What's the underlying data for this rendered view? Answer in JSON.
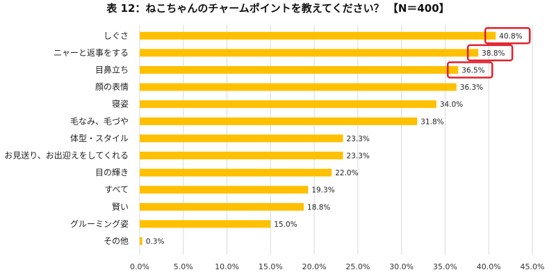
{
  "chart_data": {
    "type": "bar",
    "orientation": "horizontal",
    "title": "表 12：ねこちゃんのチャームポイントを教えてください？ 【N＝400】",
    "categories": [
      "しぐさ",
      "ニャーと返事をする",
      "目鼻立ち",
      "顔の表情",
      "寝姿",
      "毛なみ、毛づや",
      "体型・スタイル",
      "お見送り、お出迎えをしてくれる",
      "目の輝き",
      "すべて",
      "賢い",
      "グルーミング姿",
      "その他"
    ],
    "values": [
      40.8,
      38.8,
      36.5,
      36.3,
      34.0,
      31.8,
      23.3,
      23.3,
      22.0,
      19.3,
      18.8,
      15.0,
      0.3
    ],
    "data_labels": [
      "40.8%",
      "38.8%",
      "36.5%",
      "36.3%",
      "34.0%",
      "31.8%",
      "23.3%",
      "23.3%",
      "22.0%",
      "19.3%",
      "18.8%",
      "15.0%",
      "0.3%"
    ],
    "xticks": [
      "0.0%",
      "5.0%",
      "10.0%",
      "15.0%",
      "20.0%",
      "25.0%",
      "30.0%",
      "35.0%",
      "40.0%",
      "45.0%"
    ],
    "xlim": [
      0,
      45
    ],
    "xlabel": "",
    "ylabel": "",
    "grid": true,
    "highlighted_categories": [
      "しぐさ",
      "ニャーと返事をする",
      "目鼻立ち"
    ],
    "colors": {
      "bar": "#FFC000",
      "highlight": "#E0202A",
      "grid": "#D9D9D9"
    }
  }
}
